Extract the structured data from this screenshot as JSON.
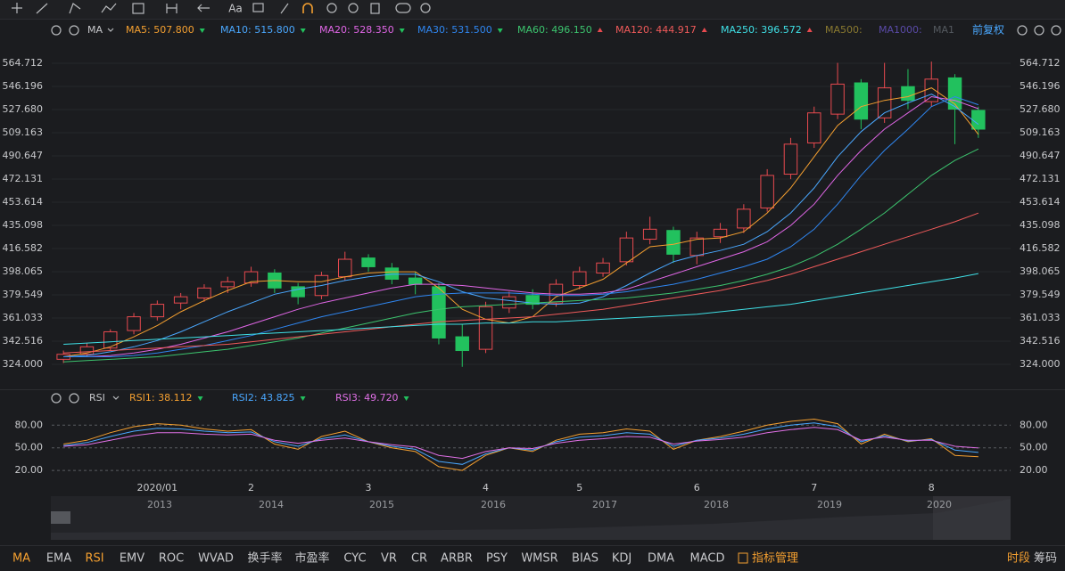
{
  "toolbar": {
    "font_button": "Aa"
  },
  "chart_data": [
    {
      "type": "candlestick",
      "title": "MA",
      "adjust": "前复权",
      "categories": [
        null,
        null,
        null,
        null,
        "2020/01",
        null,
        null,
        null,
        "2",
        null,
        null,
        null,
        null,
        "3",
        null,
        null,
        null,
        null,
        "4",
        null,
        null,
        null,
        "5",
        null,
        null,
        null,
        null,
        "6",
        null,
        null,
        null,
        null,
        "7",
        null,
        null,
        null,
        null,
        "8",
        null,
        null
      ],
      "open": [
        328,
        332,
        337,
        351,
        362,
        373,
        377,
        386,
        389,
        397,
        386,
        379,
        394,
        409,
        401,
        393,
        386,
        346,
        336,
        369,
        379,
        373,
        387,
        397,
        406,
        424,
        431,
        411,
        426,
        433,
        449,
        476,
        501,
        524,
        549,
        521,
        546,
        534,
        553,
        527
      ],
      "high": [
        335,
        341,
        352,
        365,
        375,
        381,
        388,
        394,
        402,
        400,
        389,
        398,
        414,
        412,
        405,
        398,
        389,
        356,
        374,
        382,
        384,
        392,
        402,
        409,
        430,
        442,
        434,
        430,
        437,
        452,
        480,
        505,
        530,
        565,
        552,
        565,
        560,
        566,
        556,
        530
      ],
      "low": [
        325,
        330,
        335,
        348,
        359,
        368,
        374,
        381,
        386,
        381,
        372,
        376,
        391,
        398,
        388,
        380,
        340,
        322,
        333,
        365,
        368,
        370,
        384,
        394,
        403,
        420,
        405,
        404,
        421,
        429,
        446,
        472,
        497,
        520,
        512,
        517,
        528,
        530,
        500,
        505
      ],
      "close": [
        332,
        338,
        350,
        362,
        372,
        378,
        385,
        390,
        398,
        385,
        378,
        395,
        408,
        402,
        392,
        388,
        345,
        335,
        370,
        378,
        372,
        388,
        398,
        405,
        425,
        432,
        412,
        425,
        432,
        448,
        475,
        500,
        525,
        548,
        520,
        545,
        535,
        552,
        528,
        512
      ],
      "up_color": "#e84a4f",
      "down_color": "#22c15e",
      "ylim": [
        307.6,
        583.2
      ],
      "yticks": [
        {
          "value": 324,
          "label": "324.000"
        },
        {
          "value": 342.516,
          "label": "342.516"
        },
        {
          "value": 361.033,
          "label": "361.033"
        },
        {
          "value": 379.549,
          "label": "379.549"
        },
        {
          "value": 398.065,
          "label": "398.065"
        },
        {
          "value": 416.582,
          "label": "416.582"
        },
        {
          "value": 435.098,
          "label": "435.098"
        },
        {
          "value": 453.614,
          "label": "453.614"
        },
        {
          "value": 472.131,
          "label": "472.131"
        },
        {
          "value": 490.647,
          "label": "490.647"
        },
        {
          "value": 509.163,
          "label": "509.163"
        },
        {
          "value": 527.68,
          "label": "527.680"
        },
        {
          "value": 546.196,
          "label": "546.196"
        },
        {
          "value": 564.712,
          "label": "564.712"
        }
      ],
      "grid": "solid",
      "series": [
        {
          "name": "MA5: 507.800",
          "color": "#f5a030",
          "trend": "down",
          "values": [
            330,
            333,
            338,
            346,
            355,
            366,
            375,
            383,
            390,
            391,
            390,
            390,
            394,
            397,
            398,
            398,
            385,
            368,
            360,
            357,
            362,
            378,
            385,
            392,
            405,
            418,
            420,
            424,
            425,
            430,
            445,
            465,
            490,
            515,
            530,
            535,
            538,
            545,
            532,
            507.8
          ]
        },
        {
          "name": "MA10: 515.800",
          "color": "#4aa8ff",
          "trend": "down",
          "values": [
            330,
            331,
            334,
            338,
            343,
            350,
            358,
            366,
            373,
            380,
            384,
            387,
            391,
            394,
            396,
            396,
            390,
            382,
            377,
            375,
            373,
            372,
            373,
            378,
            387,
            397,
            406,
            411,
            415,
            420,
            430,
            445,
            465,
            490,
            510,
            525,
            533,
            540,
            530,
            515.8
          ]
        },
        {
          "name": "MA20: 528.350",
          "color": "#e066e6",
          "trend": "down",
          "values": [
            330,
            330,
            331,
            333,
            336,
            340,
            345,
            350,
            356,
            362,
            368,
            373,
            377,
            381,
            385,
            388,
            388,
            387,
            385,
            383,
            381,
            380,
            380,
            381,
            384,
            390,
            396,
            402,
            408,
            414,
            422,
            435,
            452,
            475,
            495,
            512,
            525,
            538,
            535,
            528.35
          ]
        },
        {
          "name": "MA30: 531.500",
          "color": "#2f86f0",
          "trend": "down",
          "values": [
            330,
            330,
            330,
            331,
            333,
            336,
            339,
            343,
            347,
            352,
            357,
            362,
            366,
            370,
            374,
            378,
            380,
            381,
            381,
            381,
            380,
            379,
            379,
            380,
            382,
            385,
            388,
            392,
            397,
            402,
            408,
            418,
            432,
            452,
            475,
            495,
            512,
            530,
            538,
            531.5
          ]
        },
        {
          "name": "MA60: 496.150",
          "color": "#3cc46e",
          "trend": "up",
          "values": [
            326,
            327,
            328,
            329,
            330,
            332,
            334,
            336,
            339,
            342,
            345,
            349,
            353,
            357,
            361,
            365,
            368,
            370,
            371,
            372,
            373,
            374,
            375,
            376,
            377,
            379,
            381,
            384,
            387,
            391,
            396,
            402,
            410,
            420,
            432,
            445,
            460,
            475,
            487,
            496.15
          ]
        },
        {
          "name": "MA120: 444.917",
          "color": "#f05a5a",
          "trend": "up",
          "values": [
            333,
            334,
            335,
            336,
            337,
            338,
            339,
            340,
            342,
            344,
            346,
            348,
            350,
            352,
            354,
            356,
            358,
            359,
            360,
            361,
            362,
            364,
            366,
            368,
            371,
            374,
            377,
            380,
            383,
            387,
            391,
            396,
            402,
            408,
            414,
            420,
            426,
            432,
            438,
            444.917
          ]
        },
        {
          "name": "MA250: 396.572",
          "color": "#3fe0e6",
          "trend": "up",
          "values": [
            340,
            341,
            342,
            343,
            344,
            345,
            346,
            347,
            348,
            349,
            350,
            351,
            352,
            353,
            354,
            355,
            356,
            356,
            357,
            357,
            358,
            358,
            359,
            360,
            361,
            362,
            363,
            364,
            366,
            368,
            370,
            372,
            375,
            378,
            381,
            384,
            387,
            390,
            393,
            396.572
          ]
        }
      ],
      "inactive_series": [
        {
          "name": "MA500:",
          "color": "#8a7a30"
        },
        {
          "name": "MA1000:",
          "color": "#5a4aa8"
        },
        {
          "name": "MA1",
          "color": "#555a60"
        }
      ]
    },
    {
      "type": "line",
      "title": "RSI",
      "ylim": [
        6,
        98
      ],
      "yticks": [
        {
          "value": 20,
          "label": "20.00"
        },
        {
          "value": 50,
          "label": "50.00"
        },
        {
          "value": 80,
          "label": "80.00"
        }
      ],
      "grid": "dashed",
      "series": [
        {
          "name": "RSI1: 38.112",
          "color": "#f5a030",
          "trend": "down",
          "values": [
            55,
            60,
            70,
            78,
            82,
            80,
            75,
            72,
            74,
            55,
            48,
            65,
            72,
            58,
            50,
            45,
            25,
            20,
            40,
            50,
            45,
            60,
            68,
            70,
            75,
            72,
            48,
            60,
            65,
            72,
            80,
            85,
            88,
            82,
            55,
            68,
            58,
            62,
            40,
            38.112
          ]
        },
        {
          "name": "RSI2: 43.825",
          "color": "#4aa8ff",
          "trend": "down",
          "values": [
            53,
            57,
            65,
            72,
            76,
            75,
            72,
            70,
            71,
            58,
            52,
            62,
            67,
            58,
            52,
            48,
            32,
            28,
            42,
            50,
            47,
            58,
            64,
            66,
            70,
            68,
            52,
            60,
            63,
            68,
            75,
            80,
            83,
            78,
            58,
            66,
            59,
            61,
            47,
            43.825
          ]
        },
        {
          "name": "RSI3: 49.720",
          "color": "#e070e6",
          "trend": "down",
          "values": [
            52,
            54,
            60,
            66,
            70,
            70,
            68,
            67,
            68,
            60,
            56,
            60,
            63,
            58,
            54,
            51,
            40,
            36,
            45,
            50,
            49,
            56,
            60,
            62,
            65,
            64,
            55,
            59,
            61,
            64,
            70,
            74,
            77,
            74,
            60,
            64,
            60,
            60,
            52,
            49.72
          ]
        }
      ]
    }
  ],
  "navigator": {
    "years": [
      "2013",
      "2014",
      "2015",
      "2016",
      "2017",
      "2018",
      "2019",
      "2020"
    ]
  },
  "indicator_tabs": {
    "items": [
      "MA",
      "EMA",
      "RSI",
      "EMV",
      "ROC",
      "WVAD",
      "换手率",
      "市盈率",
      "CYC",
      "VR",
      "CR",
      "ARBR",
      "PSY",
      "WMSR",
      "BIAS",
      "KDJ",
      "DMA",
      "MACD"
    ],
    "manage": "指标管理",
    "right": [
      "时段",
      "筹码"
    ]
  }
}
